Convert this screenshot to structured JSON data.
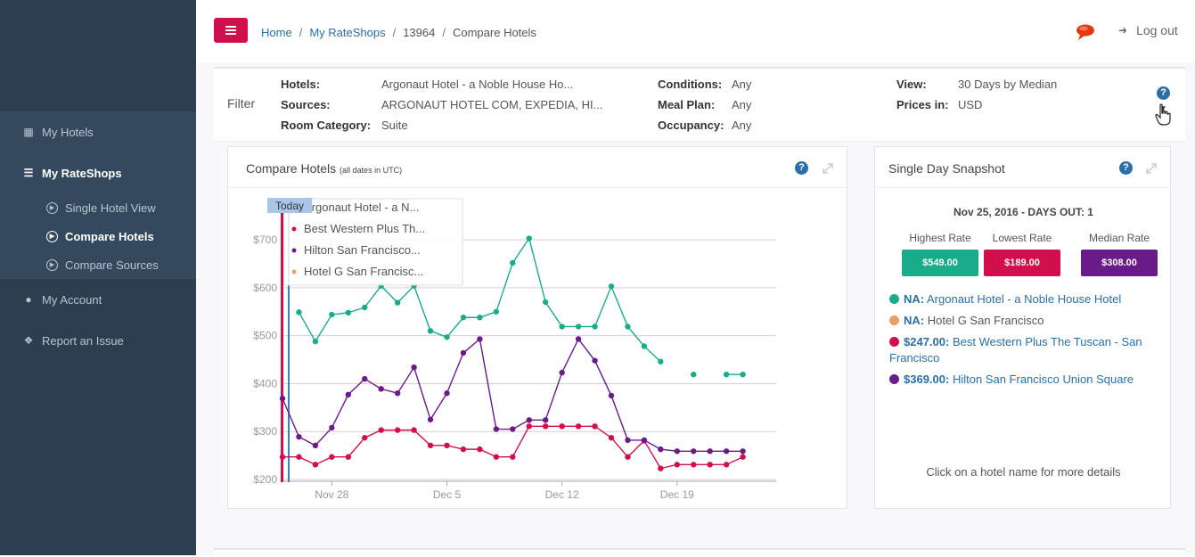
{
  "sidebar": {
    "items": [
      {
        "label": "My Hotels",
        "icon": "floppy-icon"
      },
      {
        "label": "My RateShops",
        "icon": "list-icon"
      },
      {
        "label": "My Account",
        "icon": "user-icon"
      },
      {
        "label": "Report an Issue",
        "icon": "info-icon"
      }
    ],
    "subitems": [
      {
        "label": "Single Hotel View"
      },
      {
        "label": "Compare Hotels"
      },
      {
        "label": "Compare Sources"
      }
    ]
  },
  "header": {
    "breadcrumb": [
      "Home",
      "My RateShops",
      "13964",
      "Compare Hotels"
    ],
    "logout_label": "Log out",
    "menu_color": "#d0104c"
  },
  "filter": {
    "title": "Filter",
    "hotels_label": "Hotels:",
    "hotels_value": "Argonaut Hotel - a Noble House Ho...",
    "sources_label": "Sources:",
    "sources_value": "ARGONAUT HOTEL COM, EXPEDIA, HI...",
    "room_label": "Room Category:",
    "room_value": "Suite",
    "conditions_label": "Conditions:",
    "conditions_value": "Any",
    "meal_label": "Meal Plan:",
    "meal_value": "Any",
    "occupancy_label": "Occupancy:",
    "occupancy_value": "Any",
    "view_label": "View:",
    "view_value": "30 Days by Median",
    "prices_label": "Prices in:",
    "prices_value": "USD",
    "help": "?"
  },
  "compare": {
    "title": "Compare Hotels",
    "subtitle": "(all dates in UTC)",
    "help": "?"
  },
  "snapshot": {
    "title": "Single Day Snapshot",
    "help": "?",
    "date_label": "Nov 25, 2016 - DAYS OUT: 1",
    "highest_label": "Highest Rate",
    "lowest_label": "Lowest Rate",
    "median_label": "Median Rate",
    "highest_value": "$549.00",
    "lowest_value": "$189.00",
    "median_value": "$308.00",
    "hotels": [
      {
        "price": "NA:",
        "name": "Argonaut Hotel - a Noble House Hotel",
        "color": "#1aab8b"
      },
      {
        "price": "NA:",
        "name": "Hotel G San Francisco",
        "color": "#e8a060"
      },
      {
        "price": "$247.00:",
        "name": "Best Western Plus The Tuscan - San Francisco",
        "color": "#d0104c"
      },
      {
        "price": "$369.00:",
        "name": "Hilton San Francisco Union Square",
        "color": "#6a1b8a"
      }
    ],
    "footer": "Click on a hotel name for more details"
  },
  "chart_data": {
    "type": "line",
    "today_label": "Today",
    "x_ticks": [
      "Nov 28",
      "Dec 5",
      "Dec 12",
      "Dec 19"
    ],
    "y_ticks": [
      "$200",
      "$300",
      "$400",
      "$500",
      "$600",
      "$700"
    ],
    "ylim": [
      200,
      730
    ],
    "x_start": "Nov 25",
    "series": [
      {
        "name": "Argonaut Hotel - a N...",
        "color": "#1aab8b",
        "values": [
          null,
          549,
          488,
          544,
          548,
          559,
          604,
          569,
          604,
          510,
          497,
          538,
          538,
          550,
          652,
          703,
          570,
          519,
          519,
          519,
          603,
          519,
          478,
          446,
          null,
          419,
          null,
          419,
          419
        ]
      },
      {
        "name": "Best Western Plus Th...",
        "color": "#d0104c",
        "values": [
          247,
          247,
          231,
          247,
          247,
          287,
          303,
          303,
          303,
          271,
          271,
          263,
          263,
          247,
          247,
          311,
          311,
          311,
          311,
          311,
          287,
          247,
          281,
          223,
          231,
          231,
          231,
          231,
          247
        ]
      },
      {
        "name": "Hilton San Francisco...",
        "color": "#6a1b8a",
        "values": [
          369,
          289,
          271,
          308,
          377,
          410,
          389,
          380,
          434,
          325,
          380,
          464,
          493,
          305,
          305,
          324,
          324,
          423,
          493,
          448,
          375,
          282,
          282,
          263,
          259,
          259,
          259,
          259,
          259
        ]
      },
      {
        "name": "Hotel G San Francisc...",
        "color": "#e8a060",
        "values": []
      }
    ]
  }
}
